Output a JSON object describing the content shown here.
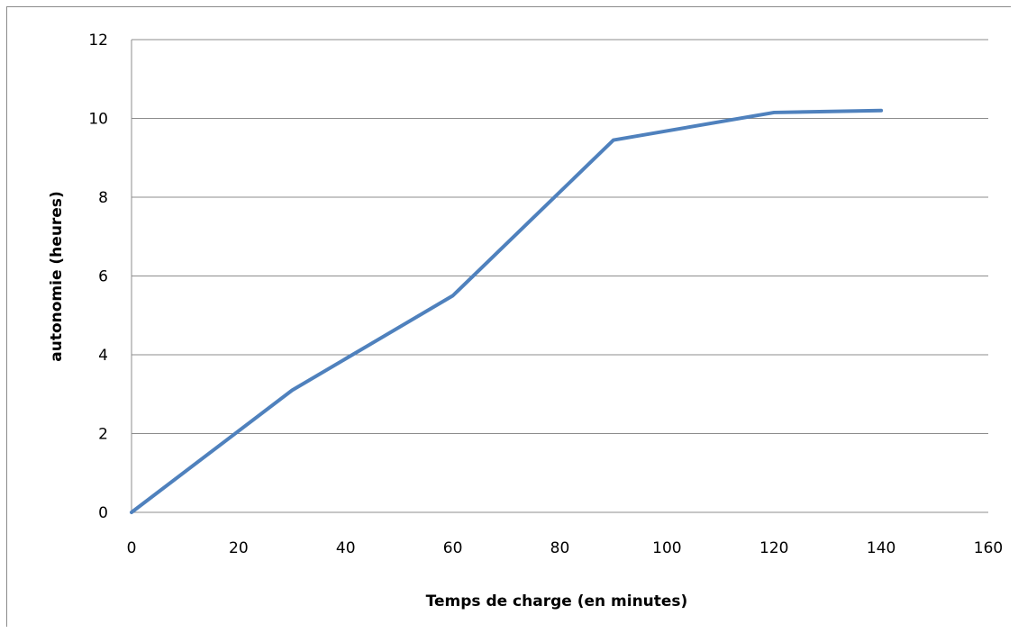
{
  "chart_data": {
    "type": "line",
    "title": "",
    "xlabel": "Temps de charge (en minutes)",
    "ylabel": "autonomie (heures)",
    "xlim": [
      0,
      160
    ],
    "ylim": [
      0,
      12
    ],
    "xticks": [
      0,
      20,
      40,
      60,
      80,
      100,
      120,
      140,
      160
    ],
    "yticks": [
      0,
      2,
      4,
      6,
      8,
      10,
      12
    ],
    "grid": "horizontal",
    "legend": "none",
    "series": [
      {
        "color": "#4f81bd",
        "x": [
          0,
          30,
          60,
          90,
          120,
          140
        ],
        "y": [
          0,
          3.1,
          5.5,
          9.45,
          10.15,
          10.2
        ]
      }
    ]
  }
}
